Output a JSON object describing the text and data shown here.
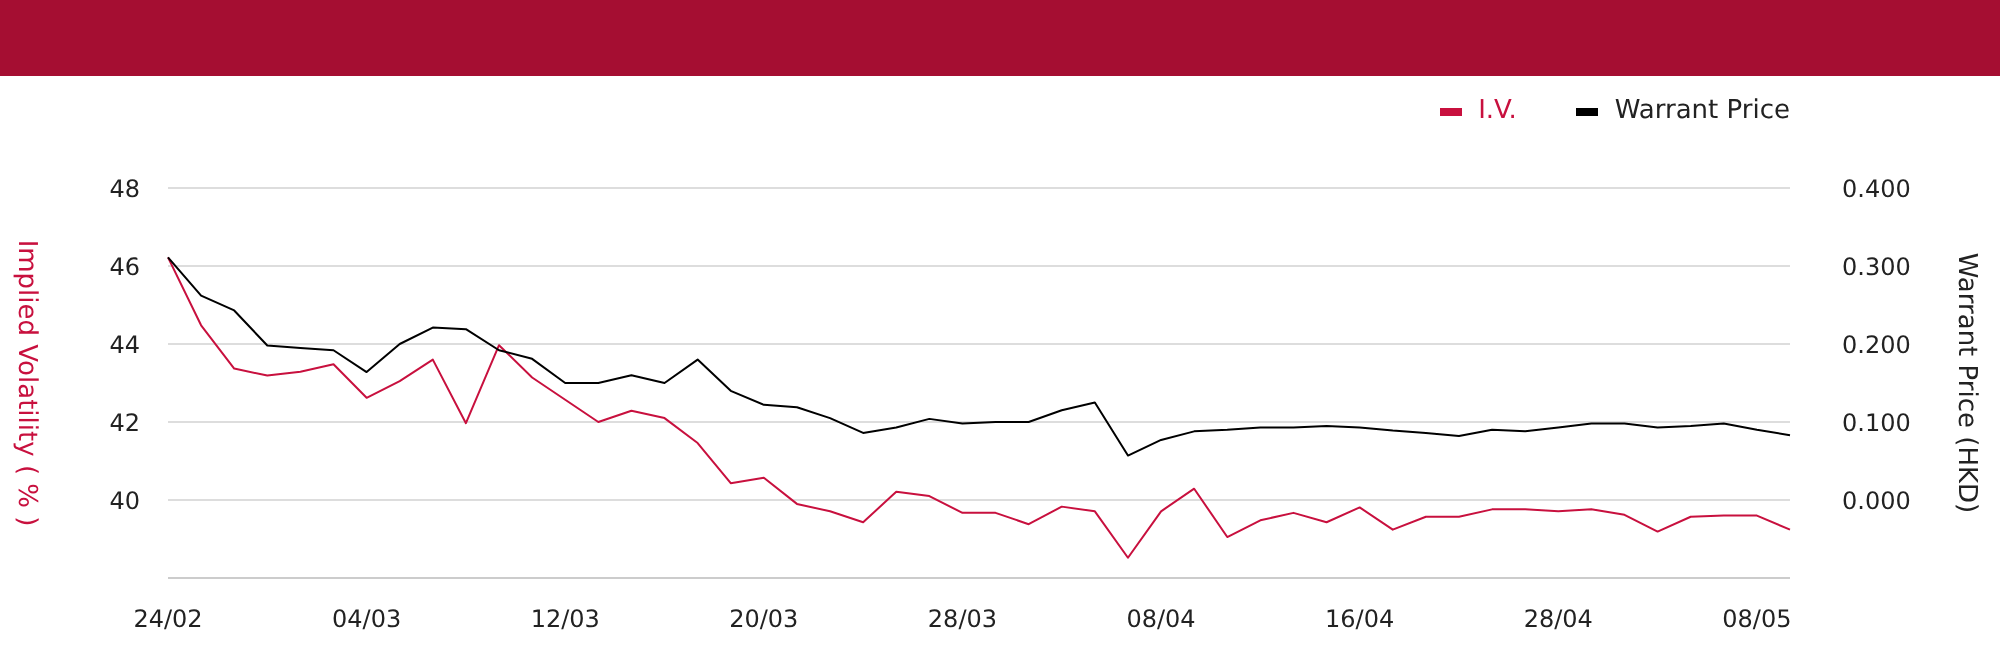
{
  "chart_data": {
    "type": "line",
    "categories": [
      "24/02",
      null,
      null,
      null,
      null,
      null,
      "04/03",
      null,
      null,
      null,
      null,
      null,
      "12/03",
      null,
      null,
      null,
      null,
      null,
      "20/03",
      null,
      null,
      null,
      null,
      null,
      "28/03",
      null,
      null,
      null,
      null,
      null,
      "08/04",
      null,
      null,
      null,
      null,
      null,
      "16/04",
      null,
      null,
      null,
      null,
      null,
      "28/04",
      null,
      null,
      null,
      null,
      null,
      "08/05",
      null
    ],
    "series": [
      {
        "name": "I.V.",
        "color": "#c8103e",
        "values": [
          46.22,
          44.48,
          43.37,
          43.19,
          43.29,
          43.48,
          42.62,
          43.05,
          43.6,
          41.97,
          43.97,
          43.14,
          42.57,
          42.0,
          42.29,
          42.1,
          41.46,
          40.43,
          40.57,
          39.9,
          39.71,
          39.43,
          40.21,
          40.1,
          39.67,
          39.67,
          39.38,
          39.83,
          39.71,
          38.52,
          39.71,
          40.29,
          39.05,
          39.48,
          39.67,
          39.43,
          39.81,
          39.24,
          39.57,
          39.57,
          39.76,
          39.76,
          39.71,
          39.76,
          39.62,
          39.19,
          39.57,
          39.6,
          39.6,
          39.24
        ]
      },
      {
        "name": "Warrant Price",
        "color": "#000000",
        "axis": "y2",
        "values": [
          0.311,
          0.262,
          0.243,
          0.198,
          0.195,
          0.192,
          0.164,
          0.2,
          0.221,
          0.219,
          0.192,
          0.181,
          0.15,
          0.15,
          0.16,
          0.15,
          0.18,
          0.14,
          0.122,
          0.119,
          0.105,
          0.086,
          0.093,
          0.104,
          0.098,
          0.1,
          0.1,
          0.115,
          0.125,
          0.057,
          0.077,
          0.088,
          0.09,
          0.093,
          0.093,
          0.095,
          0.093,
          0.089,
          0.086,
          0.082,
          0.09,
          0.088,
          0.093,
          0.098,
          0.098,
          0.093,
          0.095,
          0.098,
          0.09,
          0.083
        ]
      }
    ],
    "ylabel": "Implied Volatility ( % )",
    "y2label": "Warrant Price (HKD)",
    "ylim": [
      38,
      48
    ],
    "yticks": [
      40,
      42,
      44,
      46,
      48
    ],
    "y2lim": [
      -0.1,
      0.4
    ],
    "y2ticks": [
      {
        "value": 0,
        "label": "0.000"
      },
      {
        "value": 0.1,
        "label": "0.100"
      },
      {
        "value": 0.2,
        "label": "0.200"
      },
      {
        "value": 0.3,
        "label": "0.300"
      },
      {
        "value": 0.4,
        "label": "0.400"
      }
    ],
    "grid": "y",
    "legend": "top right",
    "marker": "none",
    "line_style": "solid"
  }
}
